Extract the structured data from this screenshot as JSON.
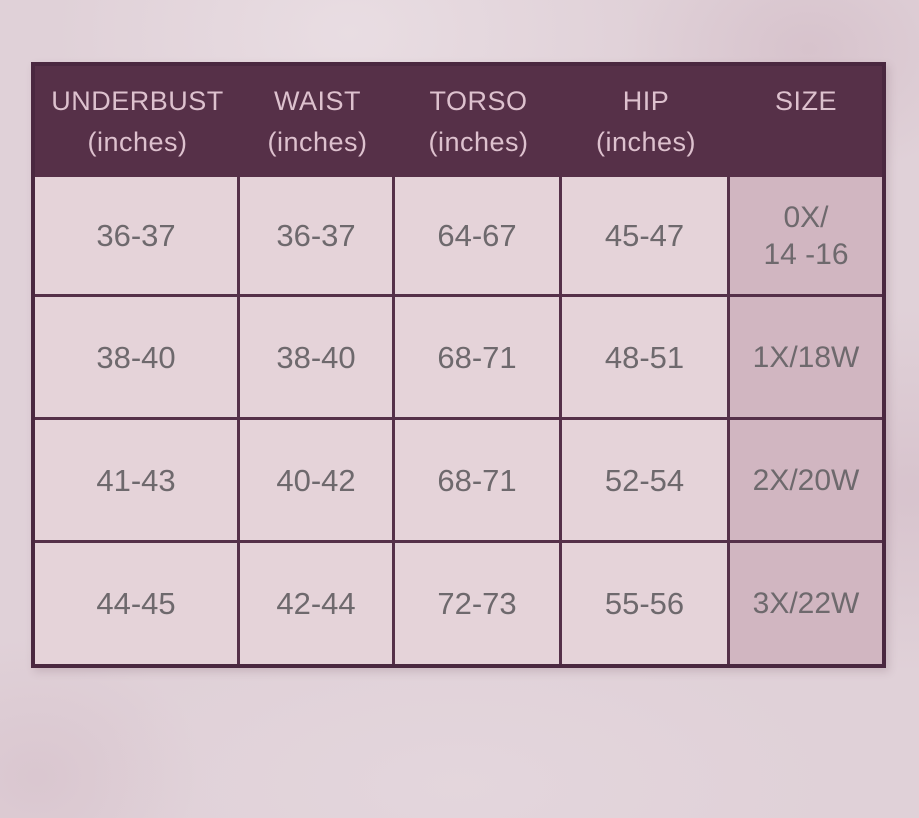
{
  "page": {
    "background_color": "#e0d1d8"
  },
  "size_chart": {
    "header": [
      {
        "label": "UNDERBUST",
        "sublabel": "(inches)"
      },
      {
        "label": "WAIST",
        "sublabel": "(inches)"
      },
      {
        "label": "TORSO",
        "sublabel": "(inches)"
      },
      {
        "label": "HIP",
        "sublabel": "(inches)"
      },
      {
        "label": "SIZE",
        "sublabel": ""
      }
    ],
    "rows": [
      [
        "36-37",
        "36-37",
        "64-67",
        "45-47",
        "0X/\n14 -16"
      ],
      [
        "38-40",
        "38-40",
        "68-71",
        "48-51",
        "1X/18W"
      ],
      [
        "41-43",
        "40-42",
        "68-71",
        "52-54",
        "2X/20W"
      ],
      [
        "44-45",
        "42-44",
        "72-73",
        "55-56",
        "3X/22W"
      ]
    ],
    "colors": {
      "header_bg": "#563048",
      "header_text": "#ddc1ce",
      "cell_bg": "#e5d3d9",
      "size_col_bg": "#d1b6c1",
      "cell_text": "#6e696d",
      "border": "#4a2840",
      "line": "#553049"
    }
  },
  "chart_data": {
    "type": "table",
    "columns": [
      "UNDERBUST (inches)",
      "WAIST (inches)",
      "TORSO (inches)",
      "HIP (inches)",
      "SIZE"
    ],
    "rows": [
      [
        "36-37",
        "36-37",
        "64-67",
        "45-47",
        "0X/ 14 -16"
      ],
      [
        "38-40",
        "38-40",
        "68-71",
        "48-51",
        "1X/18W"
      ],
      [
        "41-43",
        "40-42",
        "68-71",
        "52-54",
        "2X/20W"
      ],
      [
        "44-45",
        "42-44",
        "72-73",
        "55-56",
        "3X/22W"
      ]
    ]
  }
}
